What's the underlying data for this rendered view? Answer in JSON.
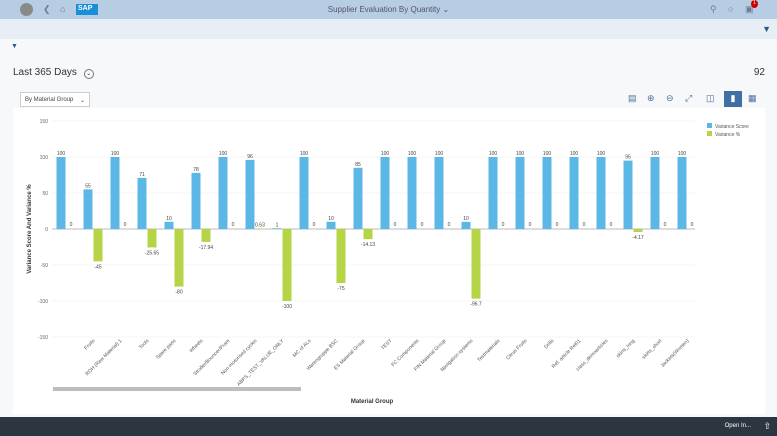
{
  "shell": {
    "title": "Supplier Evaluation By Quantity",
    "notification_count": "1"
  },
  "header": {
    "period": "Last 365 Days",
    "count": "92",
    "dropdown": "By Material Group"
  },
  "footer": {
    "open_in": "Open In..."
  },
  "colors": {
    "variance_score": "#5ab7e6",
    "variance_pct": "#b5d547",
    "shell": "#b7cde3"
  },
  "chart_data": {
    "type": "bar",
    "xlabel": "Material Group",
    "ylabel": "Variance Score And Variance %",
    "ylim": [
      -150,
      150
    ],
    "yticks": [
      150,
      100,
      50,
      0,
      -50,
      -100,
      -150
    ],
    "grid": true,
    "legend": "top-right",
    "categories": [
      "",
      "Fruits",
      "ROH (Raw Material) 1",
      "Tools",
      "Spare parts",
      "Wheels",
      "Stroller/Bouncer/Pram",
      "Non-motorised cycles",
      "ABPS_TEST_VALUE_ONLY",
      "MC of ALs",
      "Warengruppe BSC",
      "ES Material Group",
      "TEST",
      "FC Components",
      "FIN Material Group",
      "Navigation systems",
      "Testmaterials",
      "Citrus Fruits",
      "Drills",
      "Ref. article Ret01",
      "class_demoarticles",
      "skirts_long",
      "skirts_short",
      "Jackets(Women)"
    ],
    "series": [
      {
        "name": "Variance Score",
        "values": [
          100,
          55,
          100,
          71,
          10,
          78,
          100,
          96,
          1,
          100,
          10,
          85,
          100,
          100,
          100,
          10,
          100,
          100,
          100,
          100,
          100,
          95,
          100,
          100
        ],
        "labels": [
          "100",
          "55",
          "100",
          "71",
          "10",
          "78",
          "100",
          "96",
          "1",
          "100",
          "10",
          "85",
          "100",
          "100",
          "100",
          "10",
          "100",
          "100",
          "100",
          "100",
          "100",
          "95",
          "100",
          "100"
        ]
      },
      {
        "name": "Variance %",
        "values": [
          0,
          -45,
          0,
          -25.65,
          -80,
          -17.94,
          0,
          0.63,
          -100,
          0,
          -75,
          -14.13,
          0,
          0,
          0,
          -96.7,
          0,
          0,
          0,
          0,
          0,
          -4.17,
          0,
          0
        ],
        "labels": [
          "0",
          "-45",
          "0",
          "-25.65",
          "-80",
          "-17.94",
          "0",
          "0.63",
          "-100",
          "0",
          "-75",
          "-14.13",
          "0",
          "0",
          "0",
          "-96.7",
          "0",
          "0",
          "0",
          "0",
          "0",
          "-4.17",
          "0",
          "0"
        ]
      }
    ]
  }
}
